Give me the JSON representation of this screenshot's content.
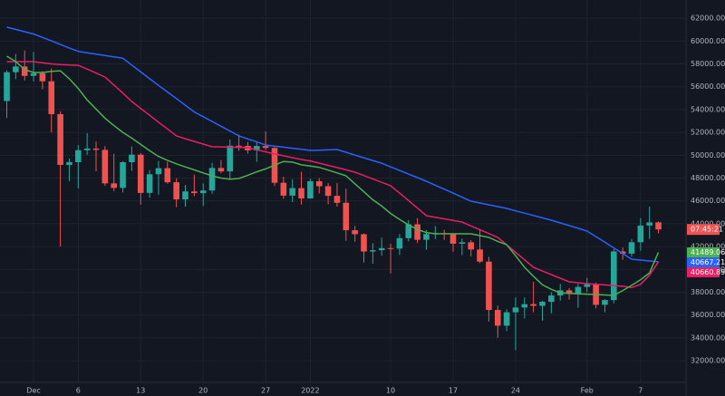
{
  "chart_data": {
    "type": "candlestick",
    "categories": [
      null,
      null,
      null,
      "Dec",
      null,
      null,
      null,
      null,
      "6",
      null,
      null,
      null,
      null,
      null,
      null,
      "13",
      null,
      null,
      null,
      null,
      null,
      null,
      "20",
      null,
      null,
      null,
      null,
      null,
      null,
      "27",
      null,
      null,
      null,
      null,
      "2022",
      null,
      null,
      null,
      null,
      null,
      null,
      null,
      null,
      "10",
      null,
      null,
      null,
      null,
      null,
      null,
      "17",
      null,
      null,
      null,
      null,
      null,
      null,
      "24",
      null,
      null,
      null,
      null,
      null,
      null,
      null,
      "Feb",
      null,
      null,
      null,
      null,
      null,
      "7",
      null,
      null
    ],
    "open": [
      54750,
      57274,
      57776,
      56950,
      57184,
      56480,
      53601,
      49152,
      49396,
      50441,
      50588,
      50471,
      47535,
      47140,
      49389,
      50053,
      46702,
      48336,
      48864,
      47632,
      46133,
      46834,
      46681,
      46914,
      48887,
      48588,
      50838,
      50821,
      50429,
      50809,
      50640,
      47588,
      46464,
      47120,
      46216,
      47722,
      47286,
      46446,
      45833,
      43432,
      43082,
      41566,
      41679,
      41864,
      41822,
      42736,
      43946,
      42592,
      43100,
      43177,
      43113,
      42250,
      42375,
      41744,
      40681,
      36445,
      35071,
      36244,
      36660,
      36958,
      36809,
      37160,
      37716,
      38166,
      37881,
      38466,
      38694,
      36896,
      37311,
      41574,
      41382,
      42380,
      43840,
      44118
    ],
    "high": [
      57445,
      58865,
      59176,
      59053,
      57375,
      57600,
      53859,
      49699,
      50891,
      51936,
      51200,
      50797,
      50125,
      49485,
      50777,
      50189,
      48700,
      49500,
      49436,
      47995,
      47392,
      48300,
      47537,
      49328,
      49576,
      51375,
      51810,
      51156,
      51228,
      52088,
      50704,
      48119,
      47900,
      48548,
      47954,
      47990,
      47570,
      47557,
      47070,
      43816,
      43145,
      42300,
      42786,
      42248,
      43100,
      44322,
      44500,
      43448,
      43800,
      43478,
      43176,
      42691,
      42559,
      43505,
      41100,
      36835,
      36499,
      37550,
      37545,
      38919,
      37234,
      38000,
      38720,
      38359,
      38744,
      39265,
      38855,
      37387,
      41772,
      41913,
      42656,
      44500,
      45492,
      44197
    ],
    "low": [
      53256,
      56666,
      56553,
      56458,
      55777,
      52000,
      42000,
      47727,
      47100,
      50039,
      48600,
      47320,
      46852,
      46751,
      48638,
      45672,
      46290,
      46547,
      47511,
      45456,
      45500,
      46406,
      45558,
      46630,
      48421,
      47920,
      50384,
      50142,
      49412,
      50450,
      47313,
      46201,
      45900,
      45678,
      46208,
      46654,
      45696,
      45500,
      42500,
      42430,
      40610,
      40501,
      41200,
      39650,
      41268,
      42450,
      42311,
      41725,
      42654,
      42581,
      41540,
      41250,
      41138,
      40553,
      35440,
      34008,
      34601,
      32917,
      35701,
      36234,
      35507,
      36155,
      37268,
      37351,
      36632,
      38000,
      36586,
      36250,
      37026,
      40843,
      41116,
      41645,
      42666,
      43159
    ],
    "close": [
      57274,
      57776,
      56950,
      57184,
      56480,
      53601,
      49152,
      49396,
      50441,
      50588,
      50471,
      47535,
      47140,
      49389,
      50053,
      46702,
      48336,
      48864,
      47632,
      46133,
      46834,
      46681,
      46914,
      48887,
      48588,
      50838,
      50821,
      50429,
      50809,
      50640,
      47588,
      46464,
      47120,
      46216,
      47722,
      47286,
      46446,
      45833,
      43432,
      43082,
      41566,
      41679,
      41864,
      41822,
      42736,
      43946,
      42592,
      43100,
      43177,
      43113,
      42250,
      42375,
      41744,
      40681,
      36445,
      35071,
      36244,
      36660,
      36958,
      36809,
      37160,
      37716,
      38166,
      37881,
      38466,
      38694,
      36896,
      37311,
      41574,
      41382,
      42380,
      43840,
      44118,
      43500
    ],
    "up_color": "#26a69a",
    "down_color": "#ef5350",
    "lines": [
      {
        "color": "#2962ff",
        "values": [
          61220,
          61020,
          60820,
          60620,
          60320,
          60020,
          59700,
          59400,
          59100,
          58980,
          58860,
          58740,
          58620,
          58500,
          57900,
          57300,
          56700,
          56120,
          55540,
          54960,
          54380,
          53800,
          53380,
          52960,
          52540,
          52120,
          51700,
          51430,
          51170,
          50900,
          50800,
          50710,
          50610,
          50520,
          50420,
          50450,
          50470,
          50500,
          50260,
          50020,
          49780,
          49540,
          49300,
          48980,
          48670,
          48350,
          48040,
          47720,
          47370,
          47030,
          46680,
          46330,
          45980,
          45820,
          45660,
          45500,
          45340,
          45130,
          44930,
          44720,
          44520,
          44310,
          44070,
          43840,
          43600,
          43360,
          42870,
          42380,
          41880,
          41390,
          40900,
          40820,
          40740,
          40667.21
        ]
      },
      {
        "color": "#e91e63",
        "values": [
          58200,
          58200,
          58200,
          58200,
          58100,
          58000,
          57950,
          57900,
          57880,
          57550,
          57200,
          56850,
          56150,
          55450,
          54710,
          54100,
          53500,
          52900,
          52300,
          51690,
          51450,
          51220,
          50980,
          50750,
          50730,
          50710,
          50690,
          50660,
          50480,
          50300,
          50110,
          49950,
          49790,
          49630,
          49500,
          49310,
          49110,
          48920,
          48720,
          48520,
          48220,
          47930,
          47630,
          47330,
          46680,
          46030,
          45370,
          44710,
          44570,
          44430,
          44290,
          44150,
          43810,
          43480,
          43140,
          42800,
          42150,
          41490,
          40840,
          40180,
          39860,
          39550,
          39230,
          38910,
          38830,
          38750,
          38690,
          38640,
          38580,
          38520,
          38400,
          38700,
          39500,
          40660.89
        ]
      },
      {
        "color": "#4caf50",
        "values": [
          58680,
          58200,
          57500,
          57250,
          57250,
          57350,
          57400,
          56700,
          55850,
          54850,
          54050,
          53250,
          52600,
          52000,
          51500,
          50950,
          50400,
          49900,
          49560,
          49250,
          48980,
          48720,
          48450,
          48200,
          48000,
          47900,
          47960,
          48250,
          48550,
          48800,
          49140,
          49450,
          49400,
          49160,
          49050,
          48940,
          48700,
          48450,
          48200,
          47500,
          46800,
          46100,
          45550,
          44900,
          44380,
          43900,
          43500,
          43230,
          43120,
          43120,
          43120,
          43120,
          43120,
          42960,
          42800,
          42450,
          42170,
          41200,
          40180,
          39400,
          38650,
          38250,
          37950,
          37900,
          37860,
          37830,
          37800,
          37760,
          37720,
          38150,
          38600,
          39100,
          39700,
          41489.06
        ]
      }
    ],
    "countdown": "07:45:21",
    "ylim": [
      30100,
      63600
    ],
    "yticks": [
      {
        "value": 32000,
        "label": "32000.00"
      },
      {
        "value": 34000,
        "label": "34000.00"
      },
      {
        "value": 36000,
        "label": "36000.00"
      },
      {
        "value": 38000,
        "label": "38000.00"
      },
      {
        "value": 40000,
        "label": "40000.00"
      },
      {
        "value": 42000,
        "label": "42000.00"
      },
      {
        "value": 44000,
        "label": "44000.00"
      },
      {
        "value": 46000,
        "label": "46000.00"
      },
      {
        "value": 48000,
        "label": "48000.00"
      },
      {
        "value": 50000,
        "label": "50000.00"
      },
      {
        "value": 52000,
        "label": "52000.00"
      },
      {
        "value": 54000,
        "label": "54000.00"
      },
      {
        "value": 56000,
        "label": "56000.00"
      },
      {
        "value": 58000,
        "label": "58000.00"
      },
      {
        "value": 60000,
        "label": "60000.00"
      },
      {
        "value": 62000,
        "label": "62000.00"
      }
    ],
    "grid": true
  }
}
